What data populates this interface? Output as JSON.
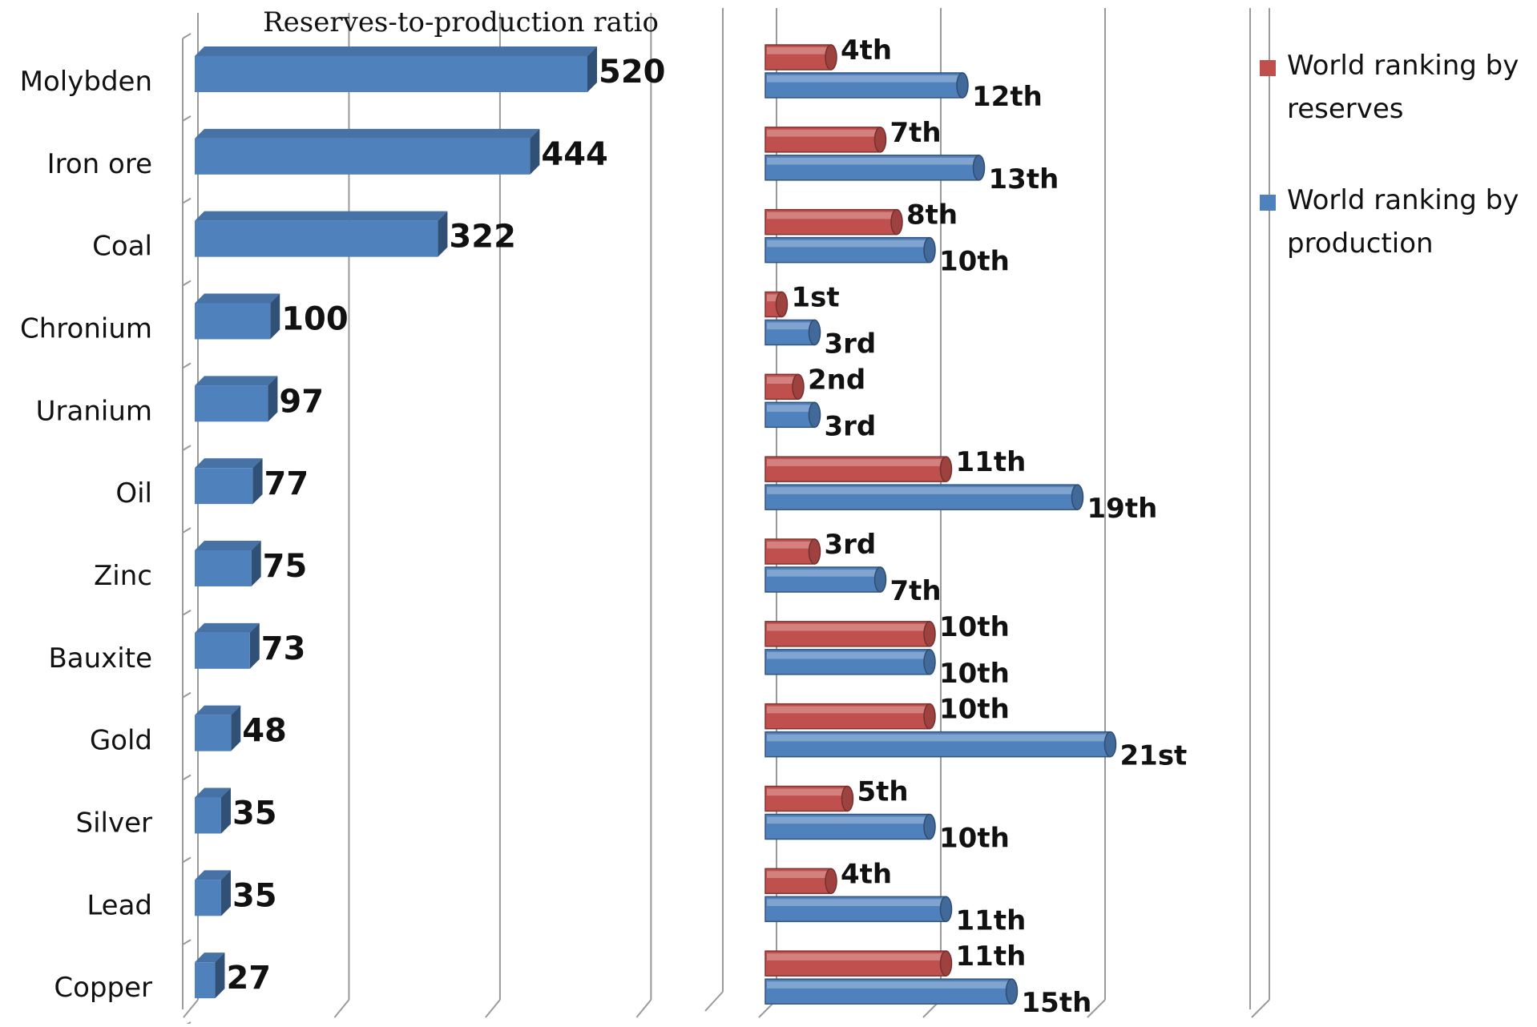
{
  "chart_data": [
    {
      "type": "bar",
      "title": "Reserves-to-production ratio",
      "categories": [
        "Molybden",
        "Iron ore",
        "Coal",
        "Chronium",
        "Uranium",
        "Oil",
        "Zinc",
        "Bauxite",
        "Gold",
        "Silver",
        "Lead",
        "Copper"
      ],
      "values": [
        520,
        444,
        322,
        100,
        97,
        77,
        75,
        73,
        48,
        35,
        35,
        27
      ],
      "data_labels": [
        "520",
        "444",
        "322",
        "100",
        "97",
        "77",
        "75",
        "73",
        "48",
        "35",
        "35",
        "27"
      ],
      "xlim": [
        0,
        600
      ],
      "grid": true,
      "color": "#4f81bd"
    },
    {
      "type": "bar",
      "categories": [
        "Molybden",
        "Iron ore",
        "Coal",
        "Chronium",
        "Uranium",
        "Oil",
        "Zinc",
        "Bauxite",
        "Gold",
        "Silver",
        "Lead",
        "Copper"
      ],
      "xlim": [
        0,
        30
      ],
      "grid": true,
      "legend_position": "right",
      "series": [
        {
          "name": "World ranking by reserves",
          "color": "#c0504d",
          "values": [
            4,
            7,
            8,
            1,
            2,
            11,
            3,
            10,
            10,
            5,
            4,
            11
          ],
          "labels": [
            "4th",
            "7th",
            "8th",
            "1st",
            "2nd",
            "11th",
            "3rd",
            "10th",
            "10th",
            "5th",
            "4th",
            "11th"
          ]
        },
        {
          "name": "World ranking by production",
          "color": "#4f81bd",
          "values": [
            12,
            13,
            10,
            3,
            3,
            19,
            7,
            10,
            21,
            10,
            11,
            15
          ],
          "labels": [
            "12th",
            "13th",
            "10th",
            "3rd",
            "3rd",
            "19th",
            "7th",
            "10th",
            "21st",
            "10th",
            "11th",
            "15th"
          ]
        }
      ]
    }
  ],
  "legend": {
    "items": [
      {
        "line1": "World ranking by",
        "line2": "reserves",
        "color": "#c0504d"
      },
      {
        "line1": "World ranking by",
        "line2": "production",
        "color": "#4f81bd"
      }
    ]
  }
}
